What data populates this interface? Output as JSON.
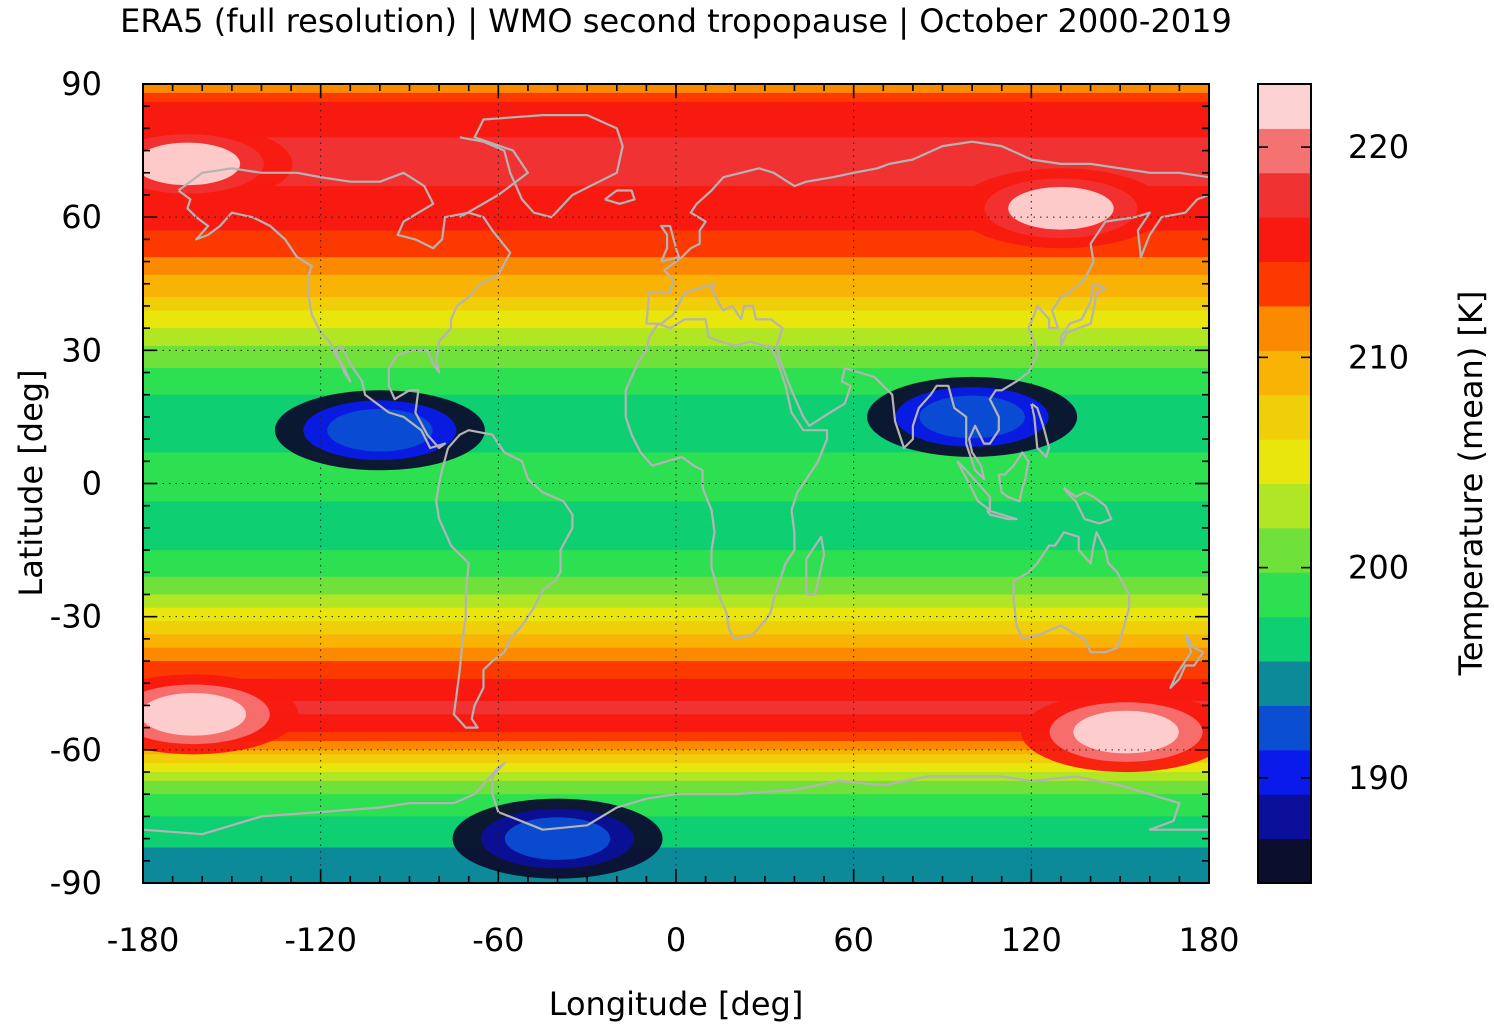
{
  "title": "ERA5 (full resolution) | WMO second tropopause | October 2000-2019",
  "chart_data": {
    "type": "heatmap",
    "title": "ERA5 (full resolution) | WMO second tropopause | October 2000-2019",
    "xlabel": "Longitude [deg]",
    "ylabel": "Latitude [deg]",
    "colorbar_label": "Temperature (mean) [K]",
    "xlim": [
      -180,
      180
    ],
    "ylim": [
      -90,
      90
    ],
    "clim": [
      185,
      223
    ],
    "xticks": [
      -180,
      -120,
      -60,
      0,
      60,
      120,
      180
    ],
    "yticks": [
      90,
      60,
      30,
      0,
      -30,
      -60,
      -90
    ],
    "xtick_labels": [
      "-180",
      "-120",
      "-60",
      "0",
      "60",
      "120",
      "180"
    ],
    "ytick_labels": [
      "90",
      "60",
      "30",
      "0",
      "-30",
      "-60",
      "-90"
    ],
    "colorbar_ticks": [
      190,
      200,
      210,
      220
    ],
    "colorbar_tick_labels": [
      "190",
      "200",
      "210",
      "220"
    ],
    "grid": "dotted",
    "coastlines": true,
    "zonal_mean_profile": {
      "lat": [
        90,
        85,
        80,
        75,
        70,
        65,
        60,
        55,
        50,
        45,
        40,
        35,
        30,
        25,
        20,
        15,
        10,
        5,
        0,
        -5,
        -10,
        -15,
        -20,
        -25,
        -30,
        -35,
        -40,
        -45,
        -50,
        -55,
        -60,
        -65,
        -70,
        -75,
        -80,
        -85,
        -90
      ],
      "temperature_K": [
        210,
        215.5,
        216.5,
        217,
        217,
        216.5,
        215.5,
        214,
        212,
        209.5,
        207,
        204,
        201.5,
        199.5,
        197.5,
        196.5,
        197,
        198,
        198.5,
        197.5,
        196.5,
        197.5,
        199.5,
        202,
        205.5,
        209,
        212.5,
        215,
        217,
        216,
        210,
        204,
        199.5,
        197.5,
        196,
        195,
        194.5
      ]
    },
    "regional_features": [
      {
        "lon": -163,
        "lat": -52,
        "temperature_K": 222.5
      },
      {
        "lon": 152,
        "lat": -56,
        "temperature_K": 222.5
      },
      {
        "lon": 130,
        "lat": 62,
        "temperature_K": 221
      },
      {
        "lon": -165,
        "lat": 72,
        "temperature_K": 221
      },
      {
        "lon": 100,
        "lat": 15,
        "temperature_K": 193
      },
      {
        "lon": -100,
        "lat": 12,
        "temperature_K": 193
      },
      {
        "lon": -40,
        "lat": -80,
        "temperature_K": 192
      }
    ],
    "colors": [
      "#0c0e2e",
      "#0b0f9a",
      "#0a1aeb",
      "#0a4ed1",
      "#0c8a99",
      "#0fcf73",
      "#2ce052",
      "#70e03a",
      "#b0e624",
      "#e8e60c",
      "#f0ce0a",
      "#f8b304",
      "#fb8a00",
      "#fc3a00",
      "#f81a10",
      "#f13232",
      "#f57272",
      "#fdd2d2"
    ]
  }
}
